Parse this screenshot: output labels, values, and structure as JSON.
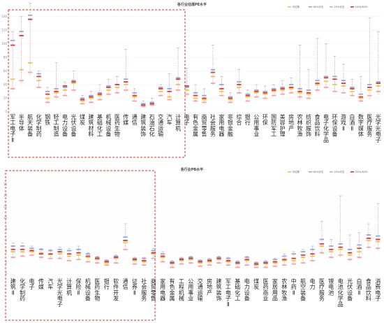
{
  "chart_data": [
    {
      "type": "dot-whisker",
      "title": "各行业估值PE水平",
      "legend": [
        "中位数",
        "80%分位",
        "20%分位",
        "2025/6/30"
      ],
      "ylim": [
        0,
        150
      ],
      "yticks": [
        0,
        20,
        40,
        60,
        80,
        100,
        120,
        140
      ],
      "grid": true,
      "legend_position": "top-right",
      "highlight_range": [
        0,
        12
      ],
      "categories": [
        "军工电子Ⅱ",
        "半导体",
        "航天装备",
        "化学制药",
        "钢铁",
        "轻工制造",
        "电力设备",
        "光伏设备",
        "煤炭",
        "建筑材料",
        "基础化工",
        "机械设备",
        "医药生物",
        "传媒",
        "通信",
        "建筑装饰",
        "石油石化",
        "交通运输",
        "汽车",
        "计算机",
        "电子",
        "有色金属",
        "商贸零售",
        "社会服务",
        "家用电器",
        "非银金融",
        "综合",
        "银行",
        "公用事业",
        "环保",
        "国防军工",
        "美容护理",
        "房地产",
        "农林牧渔",
        "纺织服饰",
        "食品饮料",
        "电子化学品",
        "环保设备",
        "游戏Ⅱ",
        "白酒Ⅱ",
        "数字媒体",
        "医疗服务",
        "光学光电子"
      ],
      "series": [
        {
          "name": "中位数",
          "values": [
            48,
            62,
            72,
            46,
            20,
            28,
            32,
            42,
            16,
            20,
            24,
            32,
            36,
            40,
            22,
            10,
            12,
            30,
            22,
            40,
            32,
            20,
            18,
            52,
            30,
            18,
            36,
            22,
            28,
            26,
            30,
            32,
            34,
            28,
            26,
            40,
            45,
            40,
            38,
            30,
            20,
            32,
            38
          ]
        },
        {
          "name": "80%分位",
          "values": [
            105,
            118,
            142,
            56,
            30,
            34,
            36,
            46,
            20,
            24,
            28,
            38,
            40,
            48,
            28,
            12,
            14,
            36,
            34,
            50,
            36,
            28,
            24,
            62,
            40,
            22,
            44,
            26,
            32,
            30,
            34,
            36,
            40,
            34,
            32,
            46,
            52,
            52,
            46,
            36,
            26,
            40,
            44
          ]
        },
        {
          "name": "20%分位",
          "values": [
            34,
            46,
            58,
            36,
            14,
            22,
            24,
            32,
            12,
            14,
            18,
            26,
            28,
            32,
            16,
            8,
            10,
            24,
            18,
            32,
            26,
            16,
            14,
            42,
            24,
            14,
            28,
            16,
            22,
            20,
            24,
            26,
            28,
            22,
            20,
            32,
            36,
            30,
            28,
            24,
            16,
            24,
            30
          ]
        },
        {
          "name": "2025/6/30",
          "values": [
            98,
            112,
            136,
            52,
            26,
            30,
            38,
            44,
            18,
            22,
            26,
            36,
            40,
            44,
            24,
            10,
            12,
            34,
            30,
            48,
            38,
            24,
            20,
            58,
            34,
            20,
            40,
            24,
            30,
            28,
            32,
            34,
            36,
            30,
            28,
            42,
            50,
            48,
            42,
            34,
            22,
            36,
            42
          ]
        }
      ],
      "whisker_max": [
        118,
        140,
        160,
        60,
        36,
        72,
        44,
        60,
        24,
        30,
        40,
        48,
        52,
        92,
        34,
        16,
        20,
        40,
        56,
        94,
        64,
        40,
        34,
        98,
        52,
        28,
        62,
        32,
        40,
        38,
        40,
        46,
        50,
        98,
        62,
        108,
        100,
        82,
        70,
        48,
        52,
        138,
        118
      ]
    },
    {
      "type": "dot-whisker",
      "title": "各行业PB水平",
      "legend": [
        "中位数",
        "80%分位",
        "20%分位",
        "2025/6/30"
      ],
      "ylim": [
        0,
        18
      ],
      "yticks": [
        0,
        2,
        4,
        6,
        8,
        10,
        12,
        14,
        16
      ],
      "grid": true,
      "legend_position": "top-right",
      "highlight_range": [
        0,
        12
      ],
      "categories": [
        "建筑Ⅱ",
        "化学制药",
        "电子",
        "传媒",
        "汽车",
        "光学光电子",
        "计算机",
        "保险Ⅱ",
        "机械设备",
        "医药生物",
        "银行",
        "软件开发",
        "通信",
        "证券Ⅱ",
        "社会服务",
        "商贸零售",
        "家用电器",
        "有色金属",
        "工程机械",
        "公用事业",
        "交通运输",
        "房地产",
        "建筑装饰",
        "军工电子Ⅱ",
        "基础化工",
        "电力设备",
        "煤炭",
        "医药商业",
        "家居用品",
        "农林牧渔",
        "中药Ⅱ",
        "航空装备",
        "电力",
        "医疗服务",
        "锂电池",
        "电池化学品",
        "光伏设备",
        "白酒Ⅱ",
        "食品饮料",
        "消费电子"
      ],
      "series": [
        {
          "name": "中位数",
          "values": [
            4,
            4,
            4,
            3.8,
            3.5,
            3.6,
            3.2,
            3.4,
            3,
            2.6,
            2,
            2.8,
            5.6,
            2.4,
            2.2,
            3.6,
            3,
            1.8,
            2.4,
            2.6,
            2,
            2.2,
            2.6,
            2.2,
            1.8,
            2.4,
            1.6,
            1.8,
            2,
            2.4,
            2.4,
            3,
            3.2,
            5,
            4,
            4.4,
            3.4,
            4,
            6,
            5.8
          ]
        },
        {
          "name": "80%分位",
          "values": [
            5,
            5,
            4.6,
            4.4,
            4.2,
            4.4,
            4.2,
            4.4,
            3.6,
            3,
            2.4,
            3.2,
            6.6,
            2.8,
            2.8,
            4.2,
            3.6,
            2.2,
            2.8,
            3,
            2.4,
            2.6,
            3,
            2.8,
            2.2,
            3,
            2,
            2.2,
            2.6,
            3.2,
            3.6,
            4,
            4.4,
            6.2,
            5,
            5.4,
            4.4,
            5.2,
            7,
            6.8
          ]
        },
        {
          "name": "20%分位",
          "values": [
            3,
            3.2,
            3.4,
            3,
            2.8,
            2.8,
            2.4,
            2.6,
            2.2,
            2,
            1.6,
            2,
            4.4,
            1.8,
            1.6,
            2.8,
            2.2,
            1.2,
            1.8,
            2,
            1.4,
            1.6,
            2,
            1.6,
            1.2,
            1.6,
            1.2,
            1.2,
            1.4,
            1.6,
            1.8,
            2,
            2.4,
            3.8,
            3,
            3.4,
            2.6,
            3,
            4.8,
            4.6
          ]
        },
        {
          "name": "2025/6/30",
          "values": [
            4.4,
            4.4,
            4.2,
            3.6,
            3.6,
            4,
            3.6,
            3.8,
            3.2,
            2.8,
            2.2,
            3,
            6,
            2.6,
            2.4,
            3.8,
            3.2,
            2,
            2.6,
            2.8,
            2.2,
            2.4,
            2.8,
            2.4,
            2,
            2.6,
            1.8,
            2,
            2.2,
            2.6,
            2.8,
            3.4,
            3.6,
            5.4,
            4.4,
            4.8,
            3.8,
            4.6,
            6.4,
            6.2
          ]
        }
      ],
      "whisker_max": [
        5.6,
        5.6,
        5,
        4.6,
        4.4,
        4.8,
        4.6,
        5,
        3.8,
        3.2,
        2.6,
        3.4,
        9,
        3,
        3,
        4.6,
        4,
        2.4,
        3,
        3.2,
        2.6,
        2.8,
        3.2,
        3,
        2.4,
        3.2,
        2.2,
        2.4,
        2.8,
        3.6,
        4,
        4.4,
        5,
        9.4,
        6.2,
        14,
        7,
        7.4,
        9,
        12.6
      ]
    }
  ],
  "colors": {
    "median": "#f5c342",
    "p80": "#8ea9db",
    "p20": "#f7a1a1",
    "current": "#d9363e",
    "highlight_box": "#e0352b",
    "whisker": "#c8a0a8"
  }
}
